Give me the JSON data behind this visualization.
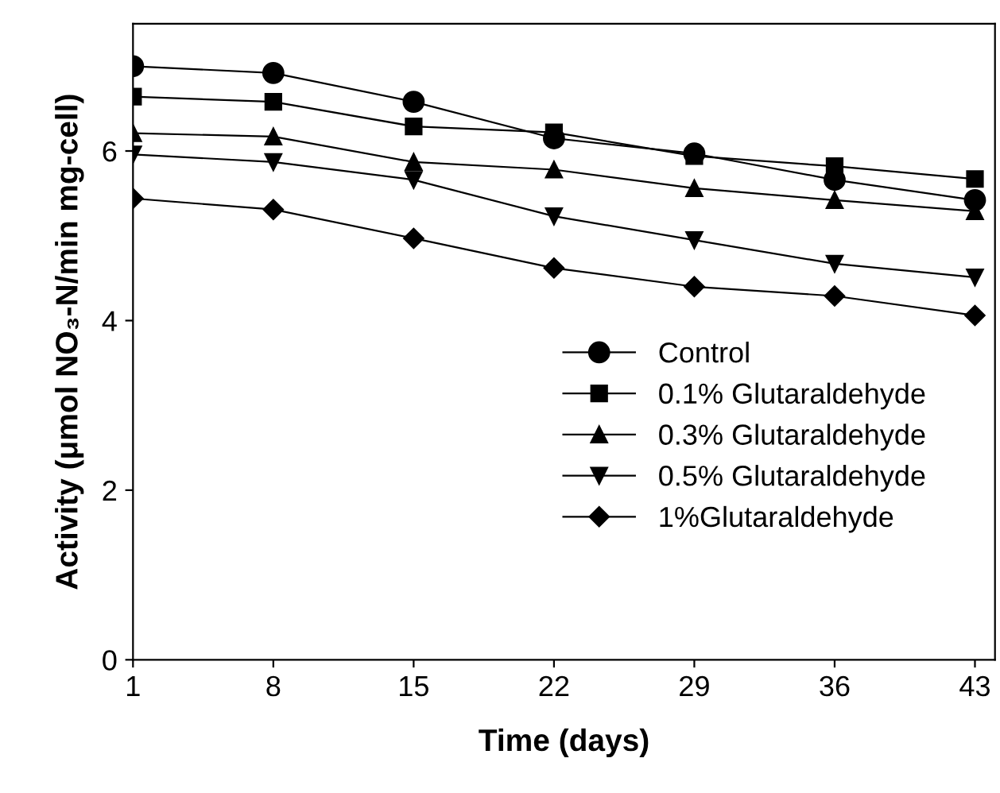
{
  "chart_data": {
    "type": "line",
    "xlabel": "Time (days)",
    "ylabel": "Activity (μmol NO₃-N/min mg-cell)",
    "x": [
      1,
      8,
      15,
      22,
      29,
      36,
      43
    ],
    "series": [
      {
        "name": "Control",
        "color": "#000000",
        "marker": "circle",
        "values": [
          7.0,
          6.92,
          6.58,
          6.15,
          5.97,
          5.66,
          5.42
        ]
      },
      {
        "name": "0.1% Glutaraldehyde",
        "color": "#000000",
        "marker": "square",
        "values": [
          6.64,
          6.58,
          6.29,
          6.22,
          5.94,
          5.82,
          5.67
        ]
      },
      {
        "name": "0.3% Glutaraldehyde",
        "color": "#000000",
        "marker": "triangle",
        "values": [
          6.21,
          6.17,
          5.87,
          5.78,
          5.56,
          5.42,
          5.29
        ]
      },
      {
        "name": "0.5% Glutaraldehyde",
        "color": "#000000",
        "marker": "triangle_down",
        "values": [
          5.96,
          5.87,
          5.66,
          5.23,
          4.95,
          4.67,
          4.51
        ]
      },
      {
        "name": "1%Glutaraldehyde",
        "color": "#000000",
        "marker": "diamond",
        "values": [
          5.44,
          5.31,
          4.97,
          4.62,
          4.4,
          4.29,
          4.06
        ]
      }
    ],
    "xlim": [
      1,
      44
    ],
    "xticks": [
      1,
      8,
      15,
      22,
      29,
      36,
      43
    ],
    "ylim": [
      0,
      7.5
    ],
    "yticks": [
      0,
      2,
      4,
      6
    ],
    "grid": false,
    "legend": "center right",
    "line_style": "solid"
  }
}
